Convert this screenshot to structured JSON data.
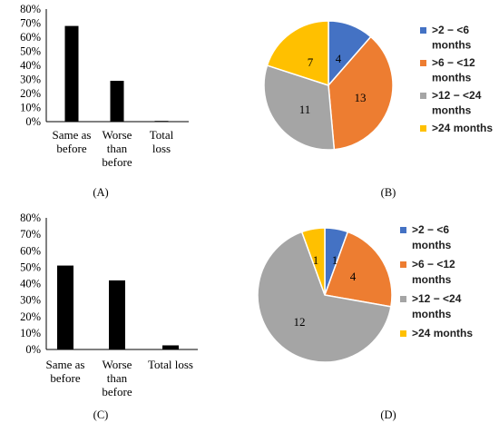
{
  "chart_data": [
    {
      "panel": "(A)",
      "type": "bar",
      "categories": [
        [
          "Same as",
          "before"
        ],
        [
          "Worse",
          "than",
          "before"
        ],
        [
          "Total",
          "loss"
        ]
      ],
      "values": [
        68,
        29,
        0.5
      ],
      "ytick_labels": [
        "0%",
        "10%",
        "20%",
        "30%",
        "40%",
        "50%",
        "60%",
        "70%",
        "80%"
      ],
      "ylim": [
        0,
        80
      ],
      "bar_color": "#000000",
      "grid": false
    },
    {
      "panel": "(B)",
      "type": "pie",
      "labels": [
        ">2 − <6 months",
        ">6 − <12 months",
        ">12 − <24 months",
        ">24 months"
      ],
      "legend_lines": [
        [
          ">2 − <6",
          "months"
        ],
        [
          ">6 − <12",
          "months"
        ],
        [
          ">12 − <24",
          "months"
        ],
        [
          ">24 months"
        ]
      ],
      "values": [
        4,
        13,
        11,
        7
      ],
      "colors": [
        "#4472C4",
        "#ED7D31",
        "#A5A5A5",
        "#FFC000"
      ],
      "legend_position": "right"
    },
    {
      "panel": "(C)",
      "type": "bar",
      "categories": [
        [
          "Same as",
          "before"
        ],
        [
          "Worse",
          "than",
          "before"
        ],
        [
          "Total loss"
        ]
      ],
      "values": [
        51,
        42,
        2.5
      ],
      "ytick_labels": [
        "0%",
        "10%",
        "20%",
        "30%",
        "40%",
        "50%",
        "60%",
        "70%",
        "80%"
      ],
      "ylim": [
        0,
        80
      ],
      "bar_color": "#000000",
      "grid": false
    },
    {
      "panel": "(D)",
      "type": "pie",
      "labels": [
        ">2 − <6 months",
        ">6 − <12 months",
        ">12 − <24 months",
        ">24 months"
      ],
      "legend_lines": [
        [
          ">2 − <6",
          "months"
        ],
        [
          ">6 − <12",
          "months"
        ],
        [
          ">12 − <24",
          "months"
        ],
        [
          ">24 months"
        ]
      ],
      "values": [
        1,
        4,
        12,
        1
      ],
      "colors": [
        "#4472C4",
        "#ED7D31",
        "#A5A5A5",
        "#FFC000"
      ],
      "legend_position": "right"
    }
  ]
}
